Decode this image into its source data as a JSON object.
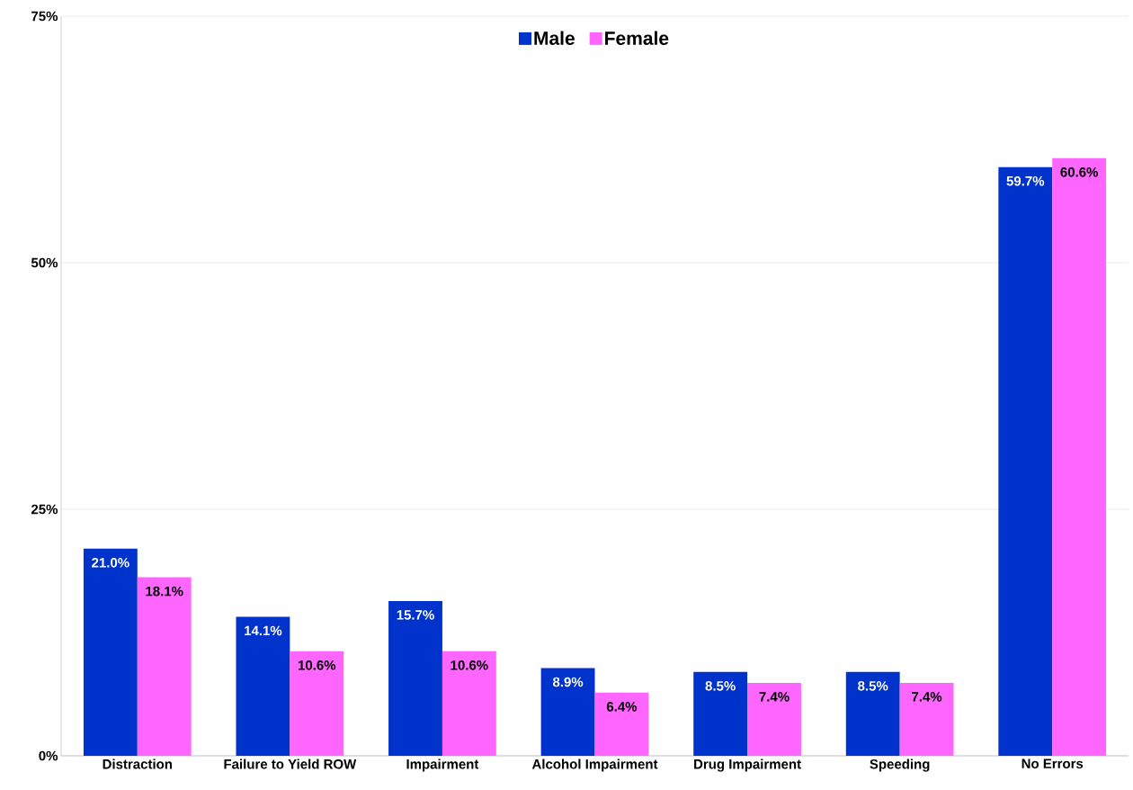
{
  "chart_data": {
    "type": "bar",
    "categories": [
      "Distraction",
      "Failure to Yield ROW",
      "Impairment",
      "Alcohol Impairment",
      "Drug Impairment",
      "Speeding",
      "No Errors"
    ],
    "series": [
      {
        "name": "Male",
        "color": "#0033cc",
        "values": [
          21.0,
          14.1,
          15.7,
          8.9,
          8.5,
          8.5,
          59.7
        ],
        "value_labels": [
          "21.0%",
          "14.1%",
          "15.7%",
          "8.9%",
          "8.5%",
          "8.5%",
          "59.7%"
        ]
      },
      {
        "name": "Female",
        "color": "#ff66ff",
        "values": [
          18.1,
          10.6,
          10.6,
          6.4,
          7.4,
          7.4,
          60.6
        ],
        "value_labels": [
          "18.1%",
          "10.6%",
          "10.6%",
          "6.4%",
          "7.4%",
          "7.4%",
          "60.6%"
        ]
      }
    ],
    "ylim": [
      0,
      75
    ],
    "yticks": [
      {
        "value": 0,
        "label": "0%"
      },
      {
        "value": 25,
        "label": "25%"
      },
      {
        "value": 50,
        "label": "50%"
      },
      {
        "value": 75,
        "label": "75%"
      }
    ],
    "grid": "y",
    "legend": "top"
  }
}
